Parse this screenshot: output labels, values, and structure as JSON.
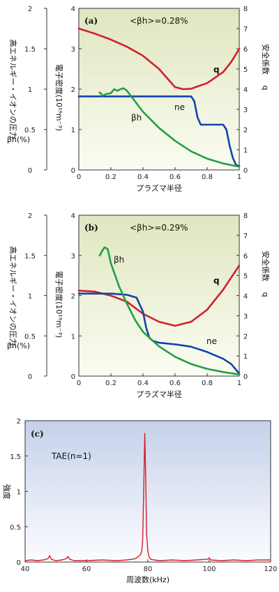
{
  "chart_data": [
    {
      "panel_label": "(a)",
      "type": "line",
      "annotation": "<βh>=0.28%",
      "xlabel": "プラズマ半径",
      "left_axis_label": [
        "高エネルギー・イオンの圧力",
        "βh(%)"
      ],
      "middle_axis_label": "電子密度(10¹⁹m⁻³)",
      "right_axis_label": [
        "安全係数",
        "q"
      ],
      "xlim": [
        0,
        1
      ],
      "xticks": [
        "0",
        "0.2",
        "0.4",
        "0.6",
        "0.8",
        "1"
      ],
      "left_ylim": [
        0,
        2
      ],
      "left_yticks": [
        "0",
        "0.5",
        "1",
        "1.5",
        "2"
      ],
      "mid_ylim": [
        0,
        4
      ],
      "mid_yticks": [
        "0",
        "1",
        "2",
        "3",
        "4"
      ],
      "right_ylim": [
        0,
        8
      ],
      "right_yticks": [
        "0",
        "1",
        "2",
        "3",
        "4",
        "5",
        "6",
        "7",
        "8"
      ],
      "series": [
        {
          "name": "q",
          "axis": "right",
          "color": "#d0202a",
          "x": [
            0,
            0.1,
            0.2,
            0.3,
            0.4,
            0.5,
            0.55,
            0.6,
            0.65,
            0.7,
            0.8,
            0.9,
            0.95,
            1.0
          ],
          "y": [
            7.0,
            6.75,
            6.45,
            6.1,
            5.65,
            5.0,
            4.55,
            4.1,
            4.0,
            4.02,
            4.3,
            4.85,
            5.35,
            6.0
          ]
        },
        {
          "name": "ne",
          "axis": "mid",
          "color": "#1144aa",
          "x": [
            0,
            0.6,
            0.7,
            0.72,
            0.74,
            0.76,
            0.9,
            0.92,
            0.94,
            0.96,
            0.98,
            1.0
          ],
          "y": [
            1.82,
            1.82,
            1.82,
            1.7,
            1.3,
            1.12,
            1.12,
            1.0,
            0.6,
            0.3,
            0.12,
            0.1
          ]
        },
        {
          "name": "βh",
          "axis": "left",
          "color": "#22a040",
          "x": [
            0.13,
            0.15,
            0.17,
            0.2,
            0.22,
            0.24,
            0.26,
            0.28,
            0.3,
            0.35,
            0.4,
            0.5,
            0.6,
            0.7,
            0.8,
            0.9,
            1.0
          ],
          "y": [
            0.96,
            0.92,
            0.94,
            0.95,
            1.0,
            0.98,
            1.0,
            1.01,
            0.98,
            0.85,
            0.72,
            0.52,
            0.36,
            0.23,
            0.14,
            0.08,
            0.04
          ]
        }
      ]
    },
    {
      "panel_label": "(b)",
      "type": "line",
      "annotation": "<βh>=0.29%",
      "xlabel": "プラズマ半径",
      "left_axis_label": [
        "高エネルギー・イオンの圧力",
        "βh(%)"
      ],
      "middle_axis_label": "電子密度(10¹⁹m⁻³)",
      "right_axis_label": [
        "安全係数",
        "q"
      ],
      "xlim": [
        0,
        1
      ],
      "xticks": [
        "0",
        "0.2",
        "0.4",
        "0.6",
        "0.8",
        "1"
      ],
      "left_ylim": [
        0,
        2
      ],
      "left_yticks": [
        "0",
        "0.5",
        "1",
        "1.5",
        "2"
      ],
      "mid_ylim": [
        0,
        4
      ],
      "mid_yticks": [
        "0",
        "1",
        "2",
        "3",
        "4"
      ],
      "right_ylim": [
        0,
        8
      ],
      "right_yticks": [
        "0",
        "1",
        "2",
        "3",
        "4",
        "5",
        "6",
        "7",
        "8"
      ],
      "series": [
        {
          "name": "q",
          "axis": "right",
          "color": "#d0202a",
          "x": [
            0,
            0.1,
            0.2,
            0.3,
            0.4,
            0.5,
            0.6,
            0.7,
            0.8,
            0.9,
            1.0
          ],
          "y": [
            4.25,
            4.2,
            4.0,
            3.7,
            3.1,
            2.7,
            2.5,
            2.7,
            3.3,
            4.3,
            5.5
          ]
        },
        {
          "name": "ne",
          "axis": "mid",
          "color": "#1144aa",
          "x": [
            0,
            0.1,
            0.2,
            0.3,
            0.36,
            0.4,
            0.42,
            0.44,
            0.46,
            0.5,
            0.6,
            0.7,
            0.8,
            0.9,
            0.95,
            1.0
          ],
          "y": [
            2.05,
            2.05,
            2.05,
            2.02,
            1.95,
            1.6,
            1.2,
            0.95,
            0.88,
            0.83,
            0.79,
            0.73,
            0.6,
            0.43,
            0.3,
            0.06
          ]
        },
        {
          "name": "βh",
          "axis": "left",
          "color": "#22a040",
          "x": [
            0.13,
            0.15,
            0.16,
            0.18,
            0.2,
            0.25,
            0.3,
            0.35,
            0.4,
            0.5,
            0.6,
            0.7,
            0.8,
            0.9,
            1.0
          ],
          "y": [
            1.5,
            1.57,
            1.6,
            1.58,
            1.4,
            1.12,
            0.9,
            0.7,
            0.55,
            0.37,
            0.24,
            0.15,
            0.09,
            0.05,
            0.02
          ]
        }
      ]
    },
    {
      "panel_label": "(c)",
      "type": "line",
      "annotation": "TAE(n=1)",
      "xlabel": "周波数(kHz)",
      "ylabel": "強度",
      "xlim": [
        40,
        120
      ],
      "xticks": [
        "40",
        "60",
        "80",
        "100",
        "120"
      ],
      "ylim": [
        0,
        2
      ],
      "yticks": [
        "0",
        "0.5",
        "1",
        "1.5",
        "2"
      ],
      "series": [
        {
          "name": "spectrum",
          "color": "#d0202a",
          "x": [
            40,
            42,
            44,
            46,
            47.5,
            48,
            48.5,
            50,
            52,
            53.5,
            54,
            54.5,
            56,
            60,
            65,
            70,
            73,
            75,
            76,
            77,
            77.5,
            78,
            78.3,
            78.6,
            79,
            79.3,
            79.6,
            80,
            80.4,
            81,
            82,
            84,
            88,
            92,
            96,
            99.5,
            100,
            100.5,
            104,
            108,
            112,
            116,
            120
          ],
          "y": [
            0.02,
            0.03,
            0.02,
            0.03,
            0.05,
            0.09,
            0.04,
            0.02,
            0.03,
            0.05,
            0.08,
            0.04,
            0.02,
            0.02,
            0.03,
            0.02,
            0.03,
            0.04,
            0.05,
            0.08,
            0.1,
            0.15,
            0.3,
            0.9,
            1.82,
            1.2,
            0.4,
            0.15,
            0.07,
            0.04,
            0.03,
            0.02,
            0.03,
            0.02,
            0.03,
            0.04,
            0.06,
            0.03,
            0.02,
            0.03,
            0.02,
            0.03,
            0.03
          ]
        }
      ]
    }
  ]
}
